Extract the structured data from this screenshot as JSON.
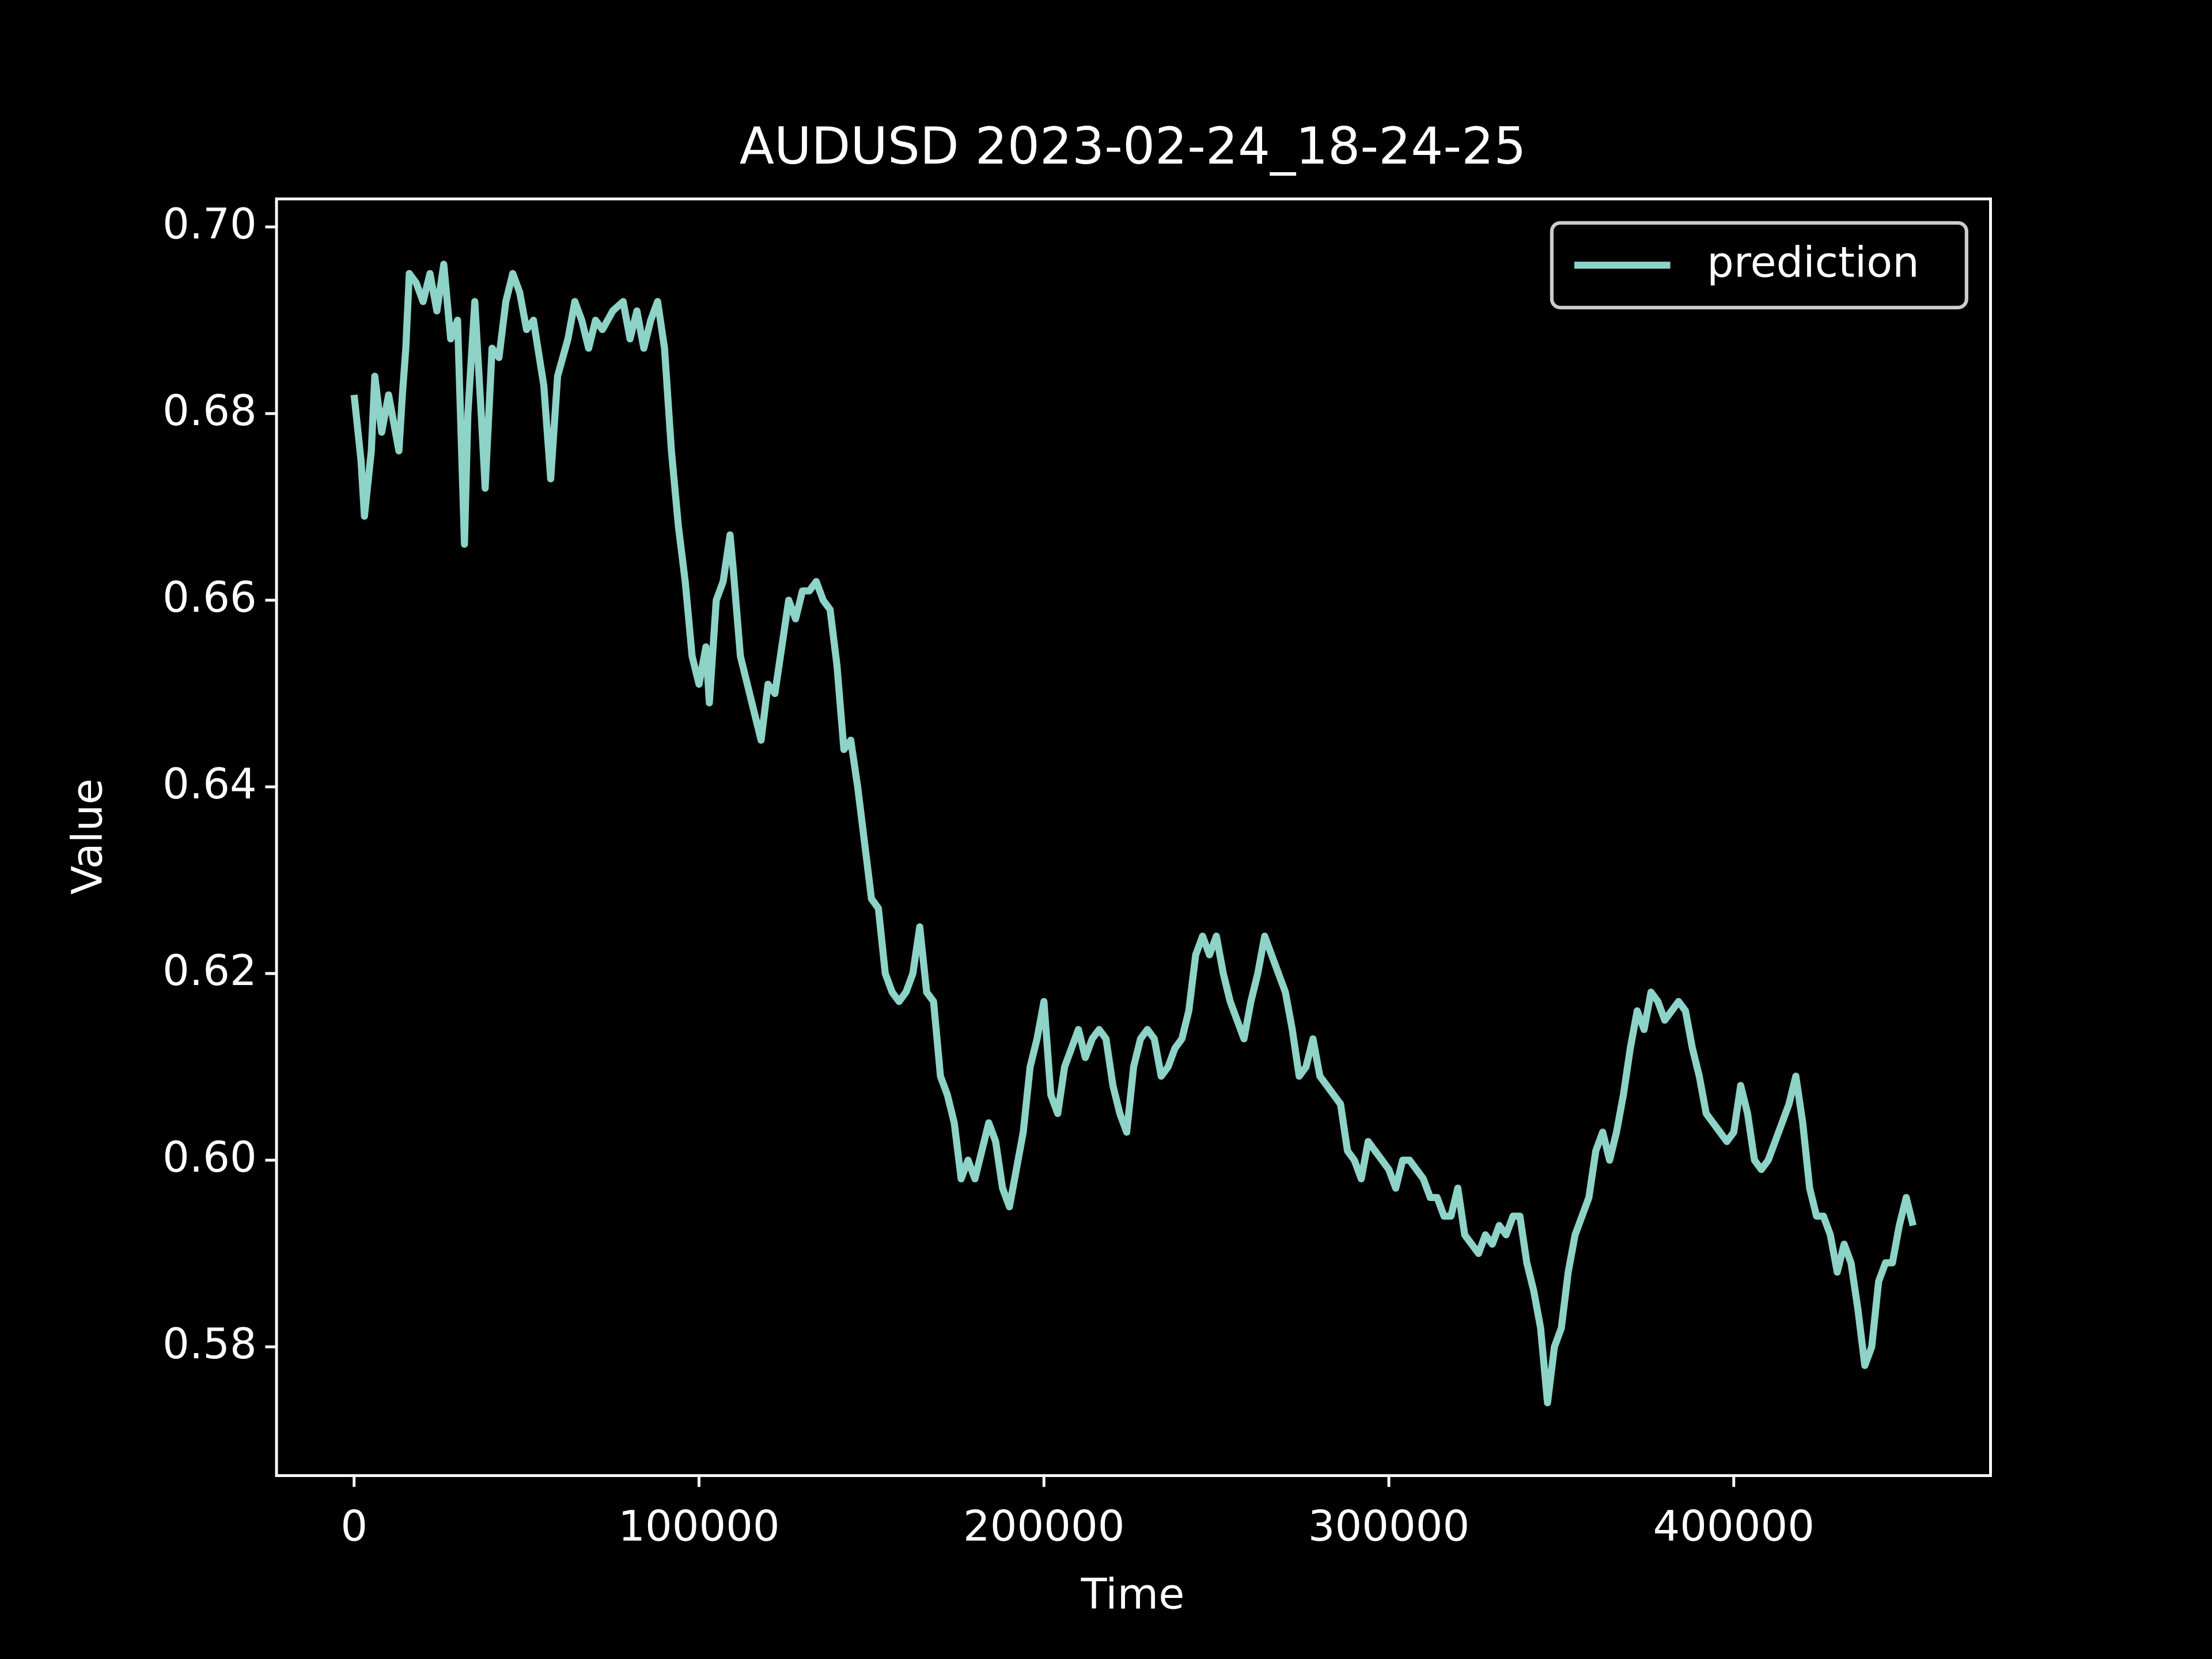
{
  "chart_data": {
    "type": "line",
    "title": "AUDUSD 2023-02-24_18-24-25",
    "xlabel": "Time",
    "ylabel": "Value",
    "x": [
      0,
      2000,
      3000,
      5000,
      6000,
      8000,
      10000,
      13000,
      14000,
      15000,
      16000,
      18000,
      20000,
      22000,
      24000,
      26000,
      28000,
      30000,
      32000,
      33000,
      35000,
      37000,
      38000,
      40000,
      42000,
      44000,
      46000,
      48000,
      50000,
      52000,
      55000,
      57000,
      59000,
      62000,
      64000,
      66000,
      68000,
      70000,
      72000,
      75000,
      78000,
      80000,
      82000,
      84000,
      86000,
      88000,
      90000,
      92000,
      94000,
      96000,
      98000,
      100000,
      102000,
      103000,
      105000,
      107000,
      109000,
      110000,
      112000,
      114000,
      116000,
      118000,
      120000,
      122000,
      124000,
      126000,
      128000,
      130000,
      132000,
      134000,
      136000,
      138000,
      140000,
      142000,
      144000,
      146000,
      148000,
      150000,
      152000,
      154000,
      156000,
      158000,
      160000,
      162000,
      164000,
      166000,
      168000,
      170000,
      172000,
      174000,
      176000,
      178000,
      180000,
      182000,
      184000,
      186000,
      188000,
      190000,
      192000,
      194000,
      196000,
      198000,
      200000,
      202000,
      204000,
      206000,
      208000,
      210000,
      212000,
      214000,
      216000,
      218000,
      220000,
      222000,
      224000,
      226000,
      228000,
      230000,
      232000,
      234000,
      236000,
      238000,
      240000,
      242000,
      244000,
      246000,
      248000,
      250000,
      252000,
      254000,
      256000,
      258000,
      260000,
      262000,
      264000,
      266000,
      268000,
      270000,
      272000,
      274000,
      276000,
      278000,
      280000,
      282000,
      284000,
      286000,
      288000,
      290000,
      292000,
      294000,
      296000,
      298000,
      300000,
      302000,
      304000,
      306000,
      308000,
      310000,
      312000,
      314000,
      316000,
      318000,
      320000,
      322000,
      324000,
      326000,
      328000,
      330000,
      332000,
      334000,
      336000,
      338000,
      340000,
      342000,
      344000,
      346000,
      348000,
      350000,
      352000,
      354000,
      356000,
      358000,
      360000,
      362000,
      364000,
      366000,
      368000,
      370000,
      372000,
      374000,
      376000,
      378000,
      380000,
      382000,
      384000,
      386000,
      388000,
      390000,
      392000,
      394000,
      396000,
      398000,
      400000,
      402000,
      404000,
      406000,
      408000,
      410000,
      412000,
      414000,
      416000,
      418000,
      420000,
      422000,
      424000,
      426000,
      428000,
      430000,
      432000,
      434000,
      436000,
      438000,
      440000,
      442000,
      444000,
      446000,
      448000,
      450000,
      452000
    ],
    "series": [
      {
        "name": "prediction",
        "color": "#8dd3c7",
        "values": [
          0.682,
          0.675,
          0.669,
          0.676,
          0.684,
          0.678,
          0.682,
          0.676,
          0.682,
          0.687,
          0.695,
          0.694,
          0.692,
          0.695,
          0.691,
          0.696,
          0.688,
          0.69,
          0.666,
          0.68,
          0.692,
          0.679,
          0.672,
          0.687,
          0.686,
          0.692,
          0.695,
          0.693,
          0.689,
          0.69,
          0.683,
          0.673,
          0.684,
          0.688,
          0.692,
          0.69,
          0.687,
          0.69,
          0.689,
          0.691,
          0.692,
          0.688,
          0.691,
          0.687,
          0.69,
          0.692,
          0.687,
          0.676,
          0.668,
          0.662,
          0.654,
          0.651,
          0.655,
          0.649,
          0.66,
          0.662,
          0.667,
          0.663,
          0.654,
          0.651,
          0.648,
          0.645,
          0.651,
          0.65,
          0.655,
          0.66,
          0.658,
          0.661,
          0.661,
          0.662,
          0.66,
          0.659,
          0.653,
          0.644,
          0.645,
          0.64,
          0.634,
          0.628,
          0.627,
          0.62,
          0.618,
          0.617,
          0.618,
          0.62,
          0.625,
          0.618,
          0.617,
          0.609,
          0.607,
          0.604,
          0.598,
          0.6,
          0.598,
          0.601,
          0.604,
          0.602,
          0.597,
          0.595,
          0.599,
          0.603,
          0.61,
          0.613,
          0.617,
          0.607,
          0.605,
          0.61,
          0.612,
          0.614,
          0.611,
          0.613,
          0.614,
          0.613,
          0.608,
          0.605,
          0.603,
          0.61,
          0.613,
          0.614,
          0.613,
          0.609,
          0.61,
          0.612,
          0.613,
          0.616,
          0.622,
          0.624,
          0.622,
          0.624,
          0.62,
          0.617,
          0.615,
          0.613,
          0.617,
          0.62,
          0.624,
          0.622,
          0.62,
          0.618,
          0.614,
          0.609,
          0.61,
          0.613,
          0.609,
          0.608,
          0.607,
          0.606,
          0.601,
          0.6,
          0.598,
          0.602,
          0.601,
          0.6,
          0.599,
          0.597,
          0.6,
          0.6,
          0.599,
          0.598,
          0.596,
          0.596,
          0.594,
          0.594,
          0.597,
          0.592,
          0.591,
          0.59,
          0.592,
          0.591,
          0.593,
          0.592,
          0.594,
          0.594,
          0.589,
          0.586,
          0.582,
          0.574,
          0.58,
          0.582,
          0.588,
          0.592,
          0.594,
          0.596,
          0.601,
          0.603,
          0.6,
          0.603,
          0.607,
          0.612,
          0.616,
          0.614,
          0.618,
          0.617,
          0.615,
          0.616,
          0.617,
          0.616,
          0.612,
          0.609,
          0.605,
          0.604,
          0.603,
          0.602,
          0.603,
          0.608,
          0.605,
          0.6,
          0.599,
          0.6,
          0.602,
          0.604,
          0.606,
          0.609,
          0.604,
          0.597,
          0.594,
          0.594,
          0.592,
          0.588,
          0.591,
          0.589,
          0.584,
          0.578,
          0.58,
          0.587,
          0.589,
          0.589,
          0.593,
          0.596,
          0.593
        ]
      }
    ],
    "xlim": [
      -22495,
      474440
    ],
    "ylim": [
      0.5662,
      0.703
    ],
    "xticks": [
      0,
      100000,
      200000,
      300000,
      400000
    ],
    "yticks": [
      0.58,
      {
        "value": 0.6,
        "label": "0.60"
      },
      0.62,
      0.64,
      0.66,
      0.68,
      {
        "value": 0.7,
        "label": "0.70"
      }
    ],
    "legend": "upper right"
  }
}
